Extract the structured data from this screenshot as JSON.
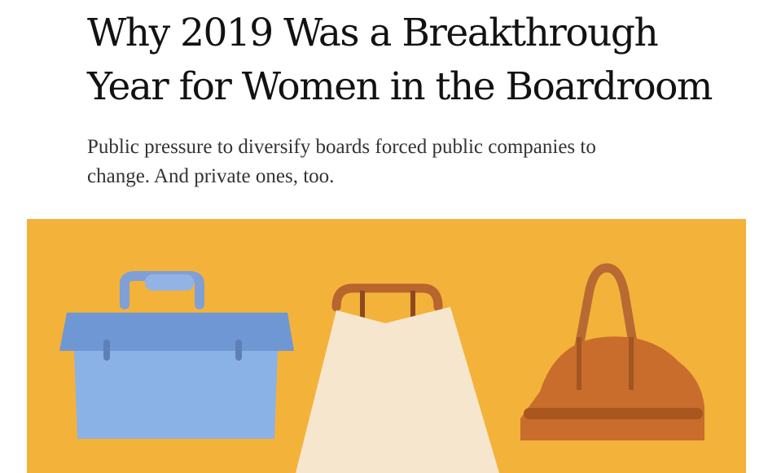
{
  "article": {
    "headline_line1": "Why 2019 Was a Breakthrough",
    "headline_line2": "Year for Women in the Boardroom",
    "summary_line1": "Public pressure to diversify boards forced public companies to",
    "summary_line2": "change. And private ones, too."
  },
  "illustration": {
    "background_color": "#f3b23a",
    "bags": [
      {
        "name": "briefcase-icon",
        "body_color": "#8bb2e6",
        "accent_color": "#6f97d3"
      },
      {
        "name": "tote-bag-icon",
        "body_color": "#f5e6cd",
        "accent_color": "#b8652e"
      },
      {
        "name": "purse-icon",
        "body_color": "#c86d2c",
        "accent_color": "#b25c22"
      }
    ]
  }
}
